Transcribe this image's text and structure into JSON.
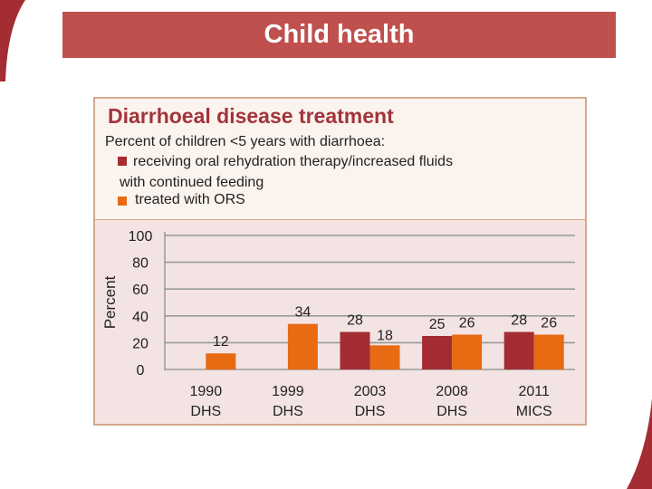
{
  "slide": {
    "title": "Child health"
  },
  "colors": {
    "banner": "#c0504d",
    "series1": "#a32d32",
    "series2": "#e86a12",
    "title_text": "#a3343a"
  },
  "chart_data": {
    "type": "bar",
    "title": "Diarrhoeal disease treatment",
    "subtitle": "Percent of children <5 years with diarrhoea:",
    "ylabel": "Percent",
    "xlabel": "",
    "ylim": [
      0,
      100
    ],
    "yticks": [
      0,
      20,
      40,
      60,
      80,
      100
    ],
    "categories": [
      {
        "line1": "1990",
        "line2": "DHS"
      },
      {
        "line1": "1999",
        "line2": "DHS"
      },
      {
        "line1": "2003",
        "line2": "DHS"
      },
      {
        "line1": "2008",
        "line2": "DHS"
      },
      {
        "line1": "2011",
        "line2": "MICS"
      }
    ],
    "series": [
      {
        "name": "receiving oral rehydration therapy/increased fluids with continued feeding",
        "legend_line1": "receiving oral rehydration therapy/increased fluids",
        "legend_line2": "with continued feeding",
        "color": "#a32d32",
        "values": [
          null,
          null,
          28,
          25,
          28
        ]
      },
      {
        "name": "treated with ORS",
        "legend_line1": "treated with ORS",
        "color": "#e86a12",
        "values": [
          12,
          34,
          18,
          26,
          26
        ]
      }
    ],
    "grid": true
  }
}
